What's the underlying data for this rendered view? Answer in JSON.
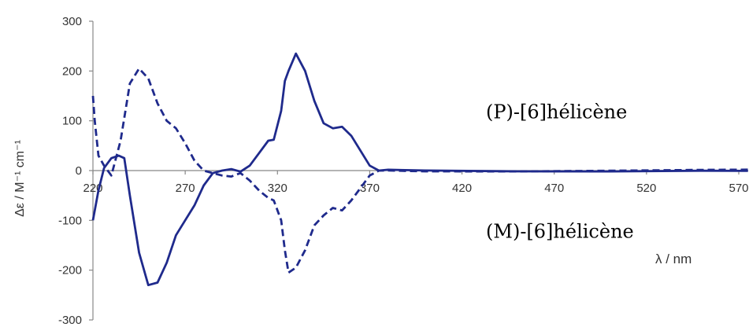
{
  "chart_data": {
    "type": "line",
    "xlabel": "λ / nm",
    "ylabel": "Δε / M⁻¹ cm⁻¹",
    "xlim": [
      220,
      575
    ],
    "ylim": [
      -300,
      300
    ],
    "x_ticks": [
      220,
      270,
      320,
      370,
      420,
      470,
      520,
      570
    ],
    "y_ticks": [
      300,
      200,
      100,
      0,
      -100,
      -200,
      -300
    ],
    "grid": false,
    "legend": "none",
    "colors": {
      "line": "#1f2a8c",
      "axis": "#888888"
    },
    "series": [
      {
        "name": "(P)-[6]hélicène",
        "style": "solid",
        "x": [
          220,
          223,
          226,
          230,
          234,
          237,
          240,
          245,
          250,
          255,
          260,
          265,
          270,
          275,
          280,
          285,
          290,
          295,
          300,
          305,
          310,
          315,
          318,
          322,
          324,
          326,
          330,
          335,
          340,
          345,
          350,
          355,
          360,
          365,
          370,
          375,
          380,
          400,
          450,
          500,
          550,
          575
        ],
        "y": [
          -100,
          -40,
          5,
          25,
          30,
          25,
          -50,
          -165,
          -230,
          -225,
          -185,
          -130,
          -100,
          -70,
          -30,
          -5,
          0,
          3,
          -2,
          10,
          35,
          60,
          62,
          120,
          180,
          200,
          235,
          200,
          140,
          95,
          85,
          88,
          70,
          40,
          10,
          0,
          0,
          0,
          0,
          0,
          0,
          -2
        ]
      },
      {
        "name": "(M)-[6]hélicène",
        "style": "dashed",
        "x": [
          220,
          221,
          223,
          226,
          230,
          235,
          240,
          245,
          250,
          255,
          260,
          265,
          270,
          275,
          280,
          285,
          290,
          295,
          300,
          305,
          310,
          315,
          318,
          322,
          324,
          326,
          330,
          335,
          340,
          345,
          350,
          355,
          360,
          365,
          370,
          375,
          380,
          400,
          450,
          500,
          550,
          575
        ],
        "y": [
          150,
          100,
          30,
          10,
          -10,
          60,
          175,
          205,
          185,
          135,
          100,
          85,
          55,
          20,
          0,
          -5,
          -10,
          -12,
          -5,
          -20,
          -40,
          -55,
          -60,
          -100,
          -160,
          -205,
          -195,
          -160,
          -110,
          -90,
          -75,
          -80,
          -60,
          -35,
          -10,
          0,
          0,
          0,
          0,
          0,
          0,
          0
        ]
      }
    ],
    "annotations": [
      {
        "text": "(P)-[6]hélicène",
        "x": 433,
        "y": 105
      },
      {
        "text": "(M)-[6]hélicène",
        "x": 433,
        "y": -135
      }
    ]
  }
}
